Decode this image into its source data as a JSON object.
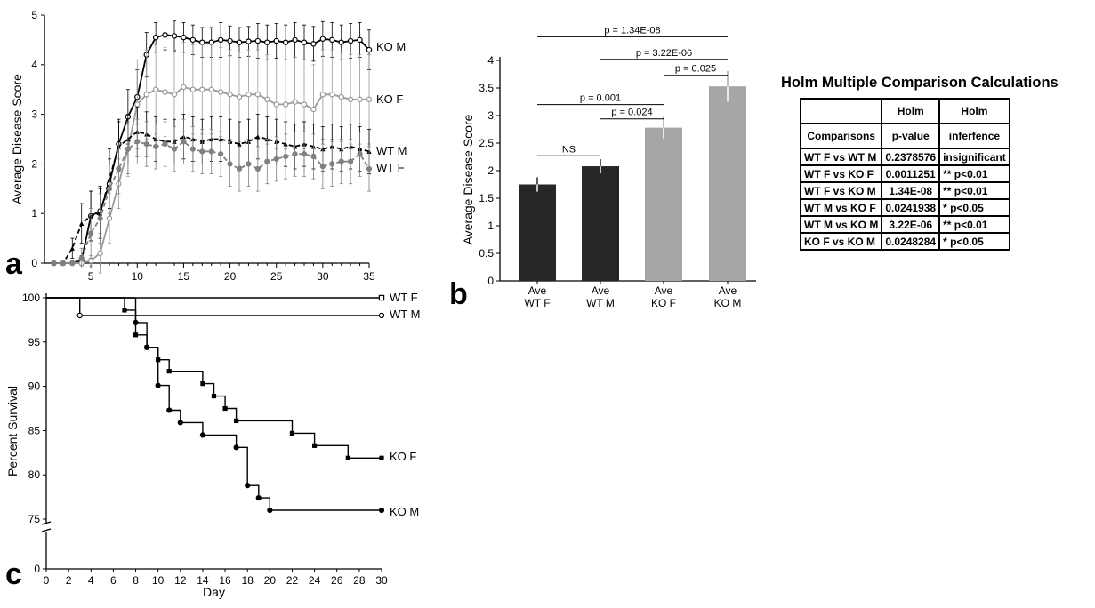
{
  "chart_data": [
    {
      "panel": "a",
      "type": "line",
      "ylabel": "Average Disease Score",
      "xlabel": "",
      "xlim": [
        0,
        35
      ],
      "ylim": [
        0,
        5
      ],
      "xticks": [
        5,
        10,
        15,
        20,
        25,
        30,
        35
      ],
      "yticks": [
        0,
        1,
        2,
        3,
        4,
        5
      ],
      "series": [
        {
          "name": "KO M",
          "color": "#000000",
          "marker": "open-circle",
          "x": [
            1,
            2,
            3,
            4,
            5,
            6,
            7,
            8,
            9,
            10,
            11,
            12,
            13,
            14,
            15,
            16,
            17,
            18,
            19,
            20,
            21,
            22,
            23,
            24,
            25,
            26,
            27,
            28,
            29,
            30,
            31,
            32,
            33,
            34,
            35
          ],
          "y": [
            0,
            0,
            0,
            0.05,
            0.95,
            1.05,
            1.6,
            2.4,
            2.95,
            3.35,
            4.2,
            4.55,
            4.6,
            4.58,
            4.55,
            4.5,
            4.45,
            4.45,
            4.5,
            4.48,
            4.45,
            4.47,
            4.48,
            4.45,
            4.48,
            4.45,
            4.5,
            4.45,
            4.42,
            4.52,
            4.5,
            4.45,
            4.48,
            4.5,
            4.3
          ],
          "err": [
            0,
            0,
            0,
            0.1,
            0.5,
            0.5,
            0.5,
            0.5,
            0.55,
            0.55,
            0.45,
            0.3,
            0.3,
            0.3,
            0.3,
            0.3,
            0.3,
            0.3,
            0.35,
            0.3,
            0.3,
            0.3,
            0.35,
            0.35,
            0.35,
            0.35,
            0.35,
            0.35,
            0.35,
            0.35,
            0.35,
            0.35,
            0.35,
            0.35,
            0.4
          ]
        },
        {
          "name": "KO F",
          "color": "#999999",
          "marker": "open-circle",
          "x": [
            1,
            2,
            3,
            4,
            5,
            6,
            7,
            8,
            9,
            10,
            11,
            12,
            13,
            14,
            15,
            16,
            17,
            18,
            19,
            20,
            21,
            22,
            23,
            24,
            25,
            26,
            27,
            28,
            29,
            30,
            31,
            32,
            33,
            34,
            35
          ],
          "y": [
            0,
            0,
            0,
            0,
            0.05,
            0.2,
            0.9,
            1.6,
            2.3,
            3.2,
            3.4,
            3.5,
            3.45,
            3.4,
            3.55,
            3.5,
            3.5,
            3.5,
            3.45,
            3.4,
            3.35,
            3.4,
            3.4,
            3.3,
            3.2,
            3.2,
            3.25,
            3.2,
            3.1,
            3.4,
            3.4,
            3.35,
            3.3,
            3.3,
            3.3
          ],
          "err": [
            0,
            0,
            0,
            0,
            0.1,
            0.4,
            0.5,
            0.5,
            0.55,
            0.9,
            0.9,
            0.9,
            0.9,
            0.9,
            0.9,
            0.9,
            0.9,
            0.9,
            0.9,
            0.9,
            0.9,
            0.9,
            0.9,
            0.9,
            0.9,
            0.9,
            0.9,
            0.9,
            0.9,
            0.9,
            0.9,
            0.9,
            0.9,
            0.9,
            0.9
          ]
        },
        {
          "name": "WT M",
          "color": "#000000",
          "marker": "filled-triangle",
          "dashed": true,
          "x": [
            1,
            2,
            3,
            4,
            5,
            6,
            7,
            8,
            9,
            10,
            11,
            12,
            13,
            14,
            15,
            16,
            17,
            18,
            19,
            20,
            21,
            22,
            23,
            24,
            25,
            26,
            27,
            28,
            29,
            30,
            31,
            32,
            33,
            34,
            35
          ],
          "y": [
            0,
            0,
            0.3,
            0.8,
            0.95,
            1.0,
            1.7,
            2.35,
            2.5,
            2.65,
            2.6,
            2.5,
            2.45,
            2.45,
            2.55,
            2.5,
            2.45,
            2.5,
            2.5,
            2.45,
            2.4,
            2.45,
            2.55,
            2.5,
            2.45,
            2.4,
            2.35,
            2.4,
            2.35,
            2.3,
            2.35,
            2.3,
            2.35,
            2.3,
            2.25
          ],
          "err": [
            0,
            0,
            0.2,
            0.4,
            0.5,
            0.5,
            0.6,
            0.5,
            0.5,
            0.5,
            0.45,
            0.45,
            0.45,
            0.45,
            0.45,
            0.45,
            0.45,
            0.45,
            0.45,
            0.45,
            0.45,
            0.45,
            0.45,
            0.45,
            0.45,
            0.45,
            0.45,
            0.45,
            0.45,
            0.45,
            0.45,
            0.45,
            0.45,
            0.45,
            0.45
          ]
        },
        {
          "name": "WT F",
          "color": "#808080",
          "marker": "filled-circle",
          "dashed": true,
          "x": [
            1,
            2,
            3,
            4,
            5,
            6,
            7,
            8,
            9,
            10,
            11,
            12,
            13,
            14,
            15,
            16,
            17,
            18,
            19,
            20,
            21,
            22,
            23,
            24,
            25,
            26,
            27,
            28,
            29,
            30,
            31,
            32,
            33,
            34,
            35
          ],
          "y": [
            0,
            0,
            0,
            0.1,
            0.6,
            0.9,
            1.5,
            1.9,
            2.3,
            2.45,
            2.4,
            2.35,
            2.4,
            2.3,
            2.45,
            2.3,
            2.25,
            2.25,
            2.2,
            2.0,
            1.9,
            2.0,
            1.9,
            2.05,
            2.1,
            2.15,
            2.2,
            2.2,
            2.15,
            1.95,
            2.0,
            2.05,
            2.05,
            2.2,
            1.9
          ],
          "err": [
            0,
            0,
            0,
            0.2,
            0.5,
            0.5,
            0.5,
            0.5,
            0.5,
            0.45,
            0.45,
            0.45,
            0.45,
            0.45,
            0.45,
            0.45,
            0.45,
            0.45,
            0.45,
            0.45,
            0.45,
            0.45,
            0.45,
            0.45,
            0.45,
            0.45,
            0.45,
            0.45,
            0.45,
            0.45,
            0.45,
            0.45,
            0.45,
            0.45,
            0.45
          ]
        }
      ]
    },
    {
      "panel": "b",
      "type": "bar",
      "ylabel": "Average Disease Score",
      "ylim": [
        0,
        4
      ],
      "yticks": [
        "0",
        "0.5",
        "1",
        "1.5",
        "2",
        "2.5",
        "3",
        "3.5",
        "4"
      ],
      "categories": [
        [
          "Ave",
          "WT F"
        ],
        [
          "Ave",
          "WT M"
        ],
        [
          "Ave",
          "KO F"
        ],
        [
          "Ave",
          "KO M"
        ]
      ],
      "values": [
        1.75,
        2.08,
        2.78,
        3.53
      ],
      "errors": [
        0.13,
        0.13,
        0.2,
        0.28
      ],
      "colors": [
        "#262626",
        "#262626",
        "#a6a6a6",
        "#a6a6a6"
      ],
      "comparisons": [
        {
          "from": 0,
          "to": 1,
          "label": "NS",
          "y": 2.27
        },
        {
          "from": 0,
          "to": 2,
          "label": "p = 0.001",
          "y": 3.2
        },
        {
          "from": 1,
          "to": 2,
          "label": "p = 0.024",
          "y": 2.94
        },
        {
          "from": 2,
          "to": 3,
          "label": "p = 0.025",
          "y": 3.73
        },
        {
          "from": 1,
          "to": 3,
          "label": "p = 3.22E-06",
          "y": 4.02
        },
        {
          "from": 0,
          "to": 3,
          "label": "p = 1.34E-08",
          "y": 4.43
        }
      ]
    },
    {
      "panel": "c",
      "type": "line",
      "step": true,
      "xlabel": "Day",
      "ylabel": "Percent Survival",
      "xlim": [
        0,
        30
      ],
      "xticks": [
        0,
        2,
        4,
        6,
        8,
        10,
        12,
        14,
        16,
        18,
        20,
        22,
        24,
        26,
        28,
        30
      ],
      "yticks_upper": [
        75,
        80,
        85,
        90,
        95,
        100
      ],
      "yticks_lower": [
        0
      ],
      "axis_break": [
        0,
        75
      ],
      "series": [
        {
          "name": "WT F",
          "marker": "open-square",
          "x": [
            0,
            30
          ],
          "y": [
            100,
            100
          ]
        },
        {
          "name": "WT M",
          "marker": "open-circle",
          "x": [
            0,
            3,
            30
          ],
          "y": [
            100,
            98,
            98
          ]
        },
        {
          "name": "KO F",
          "marker": "filled-square",
          "x": [
            0,
            7,
            8,
            9,
            10,
            11,
            14,
            15,
            16,
            17,
            22,
            24,
            27,
            30
          ],
          "y": [
            100,
            98.6,
            95.8,
            94.4,
            93.0,
            91.7,
            90.3,
            88.9,
            87.5,
            86.1,
            84.7,
            83.3,
            81.9,
            81.9
          ]
        },
        {
          "name": "KO M",
          "marker": "filled-circle",
          "x": [
            0,
            8,
            9,
            10,
            11,
            12,
            14,
            17,
            18,
            19,
            20,
            30
          ],
          "y": [
            100,
            97.2,
            94.4,
            90.1,
            87.3,
            85.9,
            84.5,
            83.1,
            78.8,
            77.4,
            76.0,
            76.0
          ]
        }
      ]
    }
  ],
  "panel_labels": {
    "a": "a",
    "b": "b",
    "c": "c"
  },
  "holm_table": {
    "title": "Holm Multiple Comparison Calculations",
    "header": [
      [
        "",
        "Holm",
        "Holm"
      ],
      [
        "Comparisons",
        "p-value",
        "inferfence"
      ]
    ],
    "rows": [
      [
        "WT F vs WT M",
        "0.2378576",
        "insignificant"
      ],
      [
        "WT F vs KO F",
        "0.0011251",
        "** p<0.01"
      ],
      [
        "WT F vs KO M",
        "1.34E-08",
        "** p<0.01"
      ],
      [
        "WT M vs KO F",
        "0.0241938",
        "* p<0.05"
      ],
      [
        "WT M vs KO M",
        "3.22E-06",
        "** p<0.01"
      ],
      [
        "KO F vs KO M",
        "0.0248284",
        "* p<0.05"
      ]
    ]
  }
}
